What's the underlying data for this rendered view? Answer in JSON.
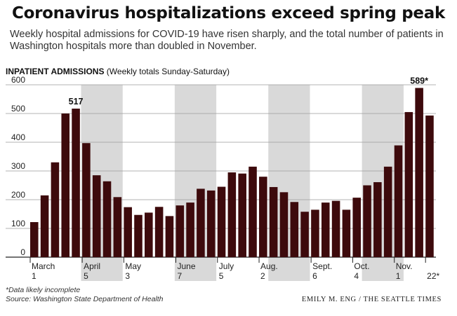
{
  "header": {
    "title": "Coronavirus hospitalizations exceed spring peak",
    "subtitle": "Weekly hospital admissions for COVID-19 have risen sharply, and the total number of patients in Washington hospitals more than doubled in November."
  },
  "chart_data": {
    "type": "bar",
    "label_bold": "INPATIENT ADMISSIONS",
    "label_rest": " (Weekly totals Sunday-Saturday)",
    "ylim": [
      0,
      600
    ],
    "yticks": [
      0,
      100,
      200,
      300,
      400,
      500,
      600
    ],
    "bar_color": "#3d0a0c",
    "shade_color": "#d9d9d9",
    "values": [
      122,
      215,
      330,
      500,
      517,
      397,
      285,
      264,
      209,
      174,
      147,
      155,
      175,
      143,
      180,
      190,
      238,
      232,
      245,
      295,
      291,
      315,
      280,
      244,
      226,
      192,
      158,
      165,
      190,
      196,
      165,
      207,
      250,
      261,
      315,
      389,
      505,
      589,
      493
    ],
    "shaded_weeks": [
      [
        5,
        8
      ],
      [
        14,
        17
      ],
      [
        23,
        26
      ],
      [
        32,
        35
      ]
    ],
    "month_labels": [
      {
        "month": "March",
        "day": "1",
        "week": 0
      },
      {
        "month": "April",
        "day": "5",
        "week": 5
      },
      {
        "month": "May",
        "day": "3",
        "week": 9
      },
      {
        "month": "June",
        "day": "7",
        "week": 14
      },
      {
        "month": "July",
        "day": "5",
        "week": 18
      },
      {
        "month": "Aug.",
        "day": "2",
        "week": 22
      },
      {
        "month": "Sept.",
        "day": "6",
        "week": 27
      },
      {
        "month": "Oct.",
        "day": "4",
        "week": 31
      },
      {
        "month": "Nov.",
        "day": "1",
        "week": 35
      },
      {
        "month": "",
        "day": "22*",
        "week": 38
      }
    ],
    "annotations": [
      {
        "week": 4,
        "text": "517"
      },
      {
        "week": 37,
        "text": "589*"
      }
    ]
  },
  "footnotes": {
    "note": "*Data likely incomplete",
    "source": "Source: Washington State Department of Health"
  },
  "credit": "EMILY M. ENG / THE SEATTLE TIMES"
}
